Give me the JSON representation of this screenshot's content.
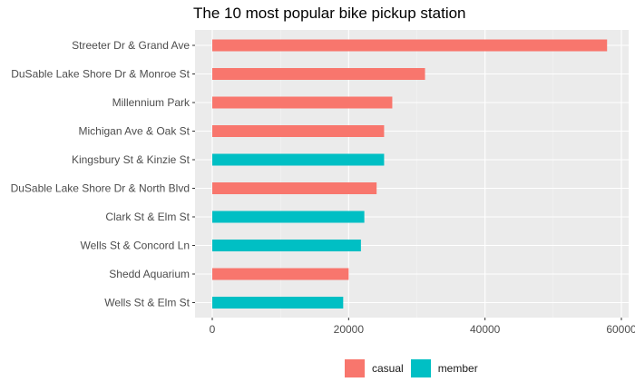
{
  "chart_data": {
    "type": "bar",
    "orientation": "horizontal",
    "title": "The 10 most popular bike pickup station",
    "xlabel": "",
    "ylabel": "",
    "xlim": [
      0,
      60000
    ],
    "x_ticks": [
      0,
      20000,
      40000,
      60000
    ],
    "x_tick_labels": [
      "0",
      "20000",
      "40000",
      "60000"
    ],
    "grid": true,
    "legend_position": "bottom",
    "categories": [
      "Streeter Dr & Grand Ave",
      "DuSable Lake Shore Dr & Monroe St",
      "Millennium Park",
      "Michigan Ave & Oak St",
      "Kingsbury St & Kinzie St",
      "DuSable Lake Shore Dr & North Blvd",
      "Clark St & Elm St",
      "Wells St & Concord Ln",
      "Shedd Aquarium",
      "Wells St & Elm St"
    ],
    "values": [
      57900,
      31200,
      26400,
      25200,
      25200,
      24100,
      22300,
      21800,
      20000,
      19200
    ],
    "groups": [
      "casual",
      "casual",
      "casual",
      "casual",
      "member",
      "casual",
      "member",
      "member",
      "casual",
      "member"
    ],
    "legend": [
      {
        "name": "casual",
        "color": "#F8766D"
      },
      {
        "name": "member",
        "color": "#00BFC4"
      }
    ]
  }
}
